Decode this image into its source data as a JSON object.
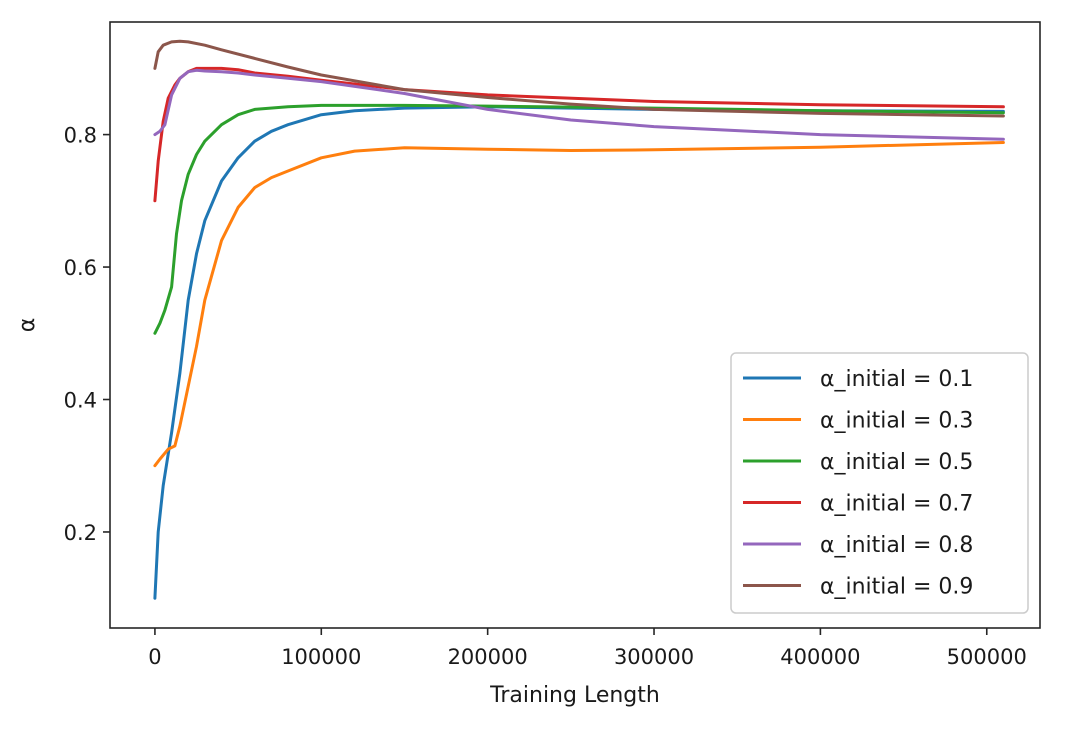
{
  "chart_data": {
    "type": "line",
    "title": "",
    "xlabel": "Training Length",
    "ylabel": "α",
    "xlim": [
      -27000,
      532000
    ],
    "ylim": [
      0.055,
      0.97
    ],
    "xticks": [
      0,
      100000,
      200000,
      300000,
      400000,
      500000
    ],
    "xtick_labels": [
      "0",
      "100000",
      "200000",
      "300000",
      "400000",
      "500000"
    ],
    "yticks": [
      0.2,
      0.4,
      0.6,
      0.8
    ],
    "ytick_labels": [
      "0.2",
      "0.4",
      "0.6",
      "0.8"
    ],
    "grid": false,
    "legend_position": "lower-right",
    "series": [
      {
        "name": "α_initial = 0.1",
        "color": "#1f77b4",
        "x": [
          0,
          2000,
          5000,
          10000,
          15000,
          20000,
          25000,
          30000,
          40000,
          50000,
          60000,
          70000,
          80000,
          100000,
          120000,
          150000,
          200000,
          300000,
          400000,
          510000
        ],
        "y": [
          0.1,
          0.2,
          0.27,
          0.35,
          0.44,
          0.55,
          0.62,
          0.67,
          0.73,
          0.765,
          0.79,
          0.805,
          0.815,
          0.83,
          0.836,
          0.84,
          0.842,
          0.838,
          0.836,
          0.835
        ]
      },
      {
        "name": "α_initial = 0.3",
        "color": "#ff7f0e",
        "x": [
          0,
          3000,
          8000,
          12000,
          15000,
          20000,
          25000,
          30000,
          40000,
          50000,
          60000,
          70000,
          80000,
          100000,
          120000,
          150000,
          200000,
          250000,
          300000,
          400000,
          510000
        ],
        "y": [
          0.3,
          0.31,
          0.325,
          0.33,
          0.36,
          0.42,
          0.48,
          0.55,
          0.64,
          0.69,
          0.72,
          0.735,
          0.745,
          0.765,
          0.775,
          0.78,
          0.778,
          0.776,
          0.777,
          0.781,
          0.788
        ]
      },
      {
        "name": "α_initial = 0.5",
        "color": "#2ca02c",
        "x": [
          0,
          3000,
          6000,
          10000,
          13000,
          16000,
          20000,
          25000,
          30000,
          40000,
          50000,
          60000,
          80000,
          100000,
          150000,
          200000,
          300000,
          400000,
          510000
        ],
        "y": [
          0.5,
          0.515,
          0.535,
          0.57,
          0.65,
          0.7,
          0.74,
          0.77,
          0.79,
          0.815,
          0.83,
          0.838,
          0.842,
          0.844,
          0.844,
          0.843,
          0.84,
          0.836,
          0.833
        ]
      },
      {
        "name": "α_initial = 0.7",
        "color": "#d62728",
        "x": [
          0,
          2000,
          5000,
          8000,
          12000,
          15000,
          20000,
          25000,
          30000,
          40000,
          50000,
          60000,
          80000,
          100000,
          150000,
          200000,
          300000,
          400000,
          510000
        ],
        "y": [
          0.7,
          0.76,
          0.82,
          0.855,
          0.875,
          0.885,
          0.895,
          0.9,
          0.9,
          0.9,
          0.898,
          0.893,
          0.888,
          0.882,
          0.868,
          0.86,
          0.85,
          0.845,
          0.842
        ]
      },
      {
        "name": "α_initial = 0.8",
        "color": "#9467bd",
        "x": [
          0,
          3000,
          6000,
          10000,
          15000,
          20000,
          25000,
          30000,
          40000,
          50000,
          60000,
          80000,
          100000,
          150000,
          200000,
          250000,
          300000,
          400000,
          510000
        ],
        "y": [
          0.8,
          0.805,
          0.815,
          0.86,
          0.885,
          0.895,
          0.897,
          0.896,
          0.895,
          0.893,
          0.89,
          0.885,
          0.88,
          0.862,
          0.838,
          0.822,
          0.812,
          0.8,
          0.793
        ]
      },
      {
        "name": "α_initial = 0.9",
        "color": "#8c564b",
        "x": [
          0,
          2000,
          5000,
          10000,
          15000,
          20000,
          30000,
          40000,
          60000,
          80000,
          100000,
          150000,
          200000,
          250000,
          300000,
          400000,
          510000
        ],
        "y": [
          0.9,
          0.925,
          0.935,
          0.94,
          0.941,
          0.94,
          0.935,
          0.928,
          0.915,
          0.902,
          0.89,
          0.868,
          0.856,
          0.846,
          0.838,
          0.832,
          0.828
        ]
      }
    ]
  }
}
